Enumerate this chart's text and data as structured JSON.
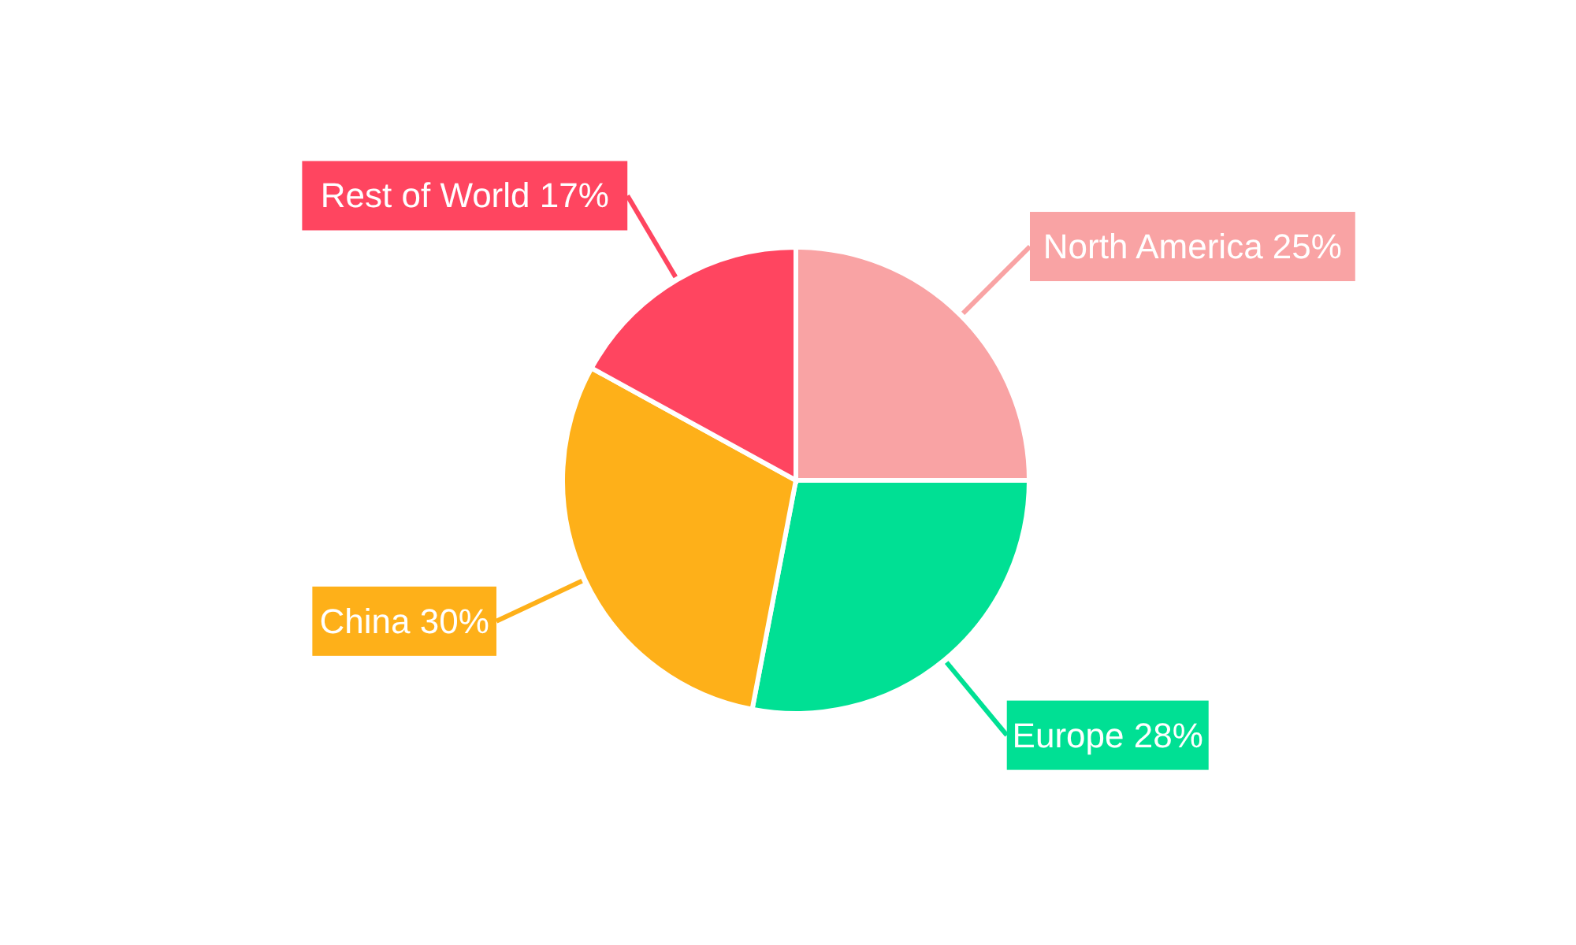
{
  "chart_data": {
    "type": "pie",
    "categories": [
      "North America",
      "Europe",
      "China",
      "Rest of World"
    ],
    "values": [
      25,
      28,
      30,
      17
    ],
    "value_labels": [
      "25%",
      "28%",
      "30%",
      "17%"
    ],
    "colors": [
      "#f9a3a4",
      "#00e094",
      "#feb019",
      "#ff4560"
    ],
    "legend": false
  }
}
